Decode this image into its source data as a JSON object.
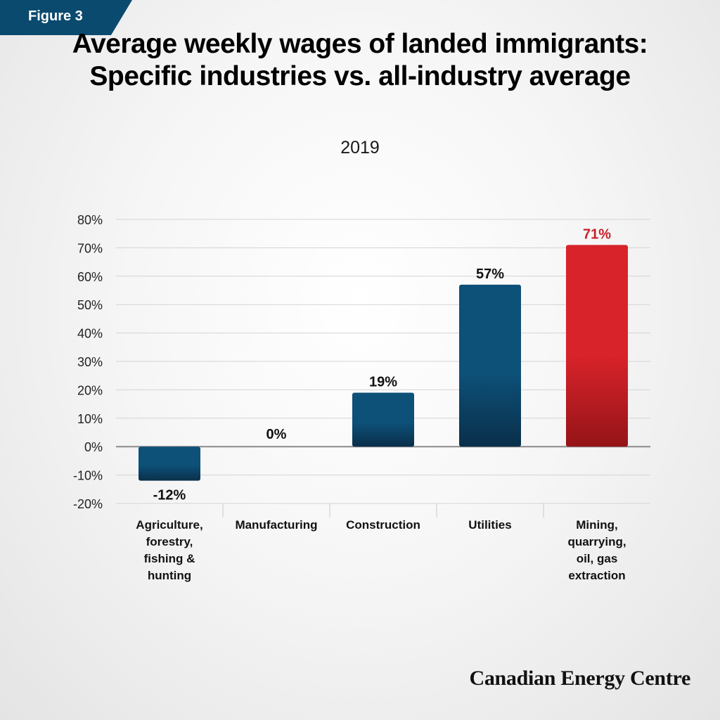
{
  "figure_label": "Figure 3",
  "title": "Average weekly wages of landed immigrants: Specific industries vs. all-industry average",
  "subtitle": "2019",
  "brand": "Canadian Energy Centre",
  "colors": {
    "bar_blue_top": "#0d5078",
    "bar_blue_bottom": "#0a2f4a",
    "bar_red_top": "#d8232a",
    "bar_red_bottom": "#951418",
    "highlight_label": "#c8202a",
    "zero_line": "#8a8a8a",
    "gridline": "#d4d4d4"
  },
  "chart_data": {
    "type": "bar",
    "title": "Average weekly wages of landed immigrants: Specific industries vs. all-industry average",
    "subtitle": "2019",
    "categories": [
      [
        "Agriculture,",
        "forestry,",
        "fishing &",
        "hunting"
      ],
      [
        "Manufacturing"
      ],
      [
        "Construction"
      ],
      [
        "Utilities"
      ],
      [
        "Mining,",
        "quarrying,",
        "oil, gas",
        "extraction"
      ]
    ],
    "values": [
      -12,
      0,
      19,
      57,
      71
    ],
    "value_labels": [
      "-12%",
      "0%",
      "19%",
      "57%",
      "71%"
    ],
    "highlight_index": 4,
    "ylim": [
      -20,
      80
    ],
    "yticks": [
      80,
      70,
      60,
      50,
      40,
      30,
      20,
      10,
      0,
      -10,
      -20
    ],
    "ytick_labels": [
      "80%",
      "70%",
      "60%",
      "50%",
      "40%",
      "30%",
      "20%",
      "10%",
      "0%",
      "-10%",
      "-20%"
    ],
    "grid": true,
    "legend": "none"
  }
}
